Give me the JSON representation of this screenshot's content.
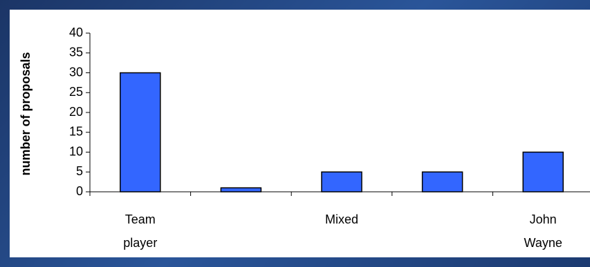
{
  "chart_data": {
    "type": "bar",
    "y_axis_label": "number of proposals",
    "categories": [
      "Team player",
      null,
      "Mixed",
      null,
      "John Wayne"
    ],
    "values": [
      30,
      1,
      5,
      5,
      10
    ],
    "color": "#3366ff",
    "ylim": [
      0,
      40
    ],
    "yticks": [
      0,
      5,
      10,
      15,
      20,
      25,
      30,
      35,
      40
    ],
    "grid": false
  }
}
